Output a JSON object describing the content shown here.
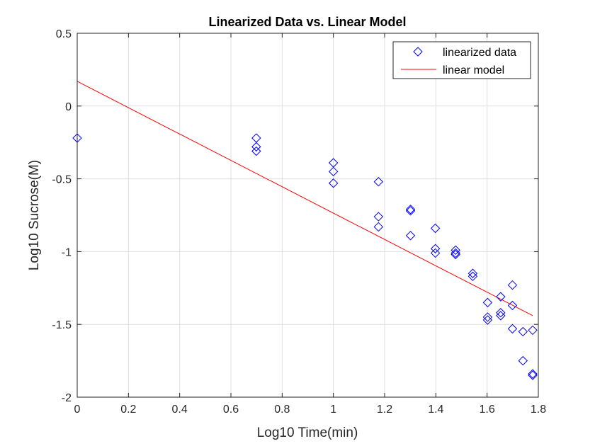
{
  "chart_data": {
    "type": "scatter",
    "title": "Linearized Data vs. Linear Model",
    "xlabel": "Log10 Time(min)",
    "ylabel": "Log10 Sucrose(M)",
    "xlim": [
      0,
      1.8
    ],
    "ylim": [
      -2,
      0.5
    ],
    "xticks": [
      "0",
      "0.2",
      "0.4",
      "0.6",
      "0.8",
      "1",
      "1.2",
      "1.4",
      "1.6",
      "1.8"
    ],
    "yticks": [
      "0.5",
      "0",
      "-0.5",
      "-1",
      "-1.5",
      "-2"
    ],
    "grid": true,
    "legend_position": "top-right",
    "series": [
      {
        "name": "linearized data",
        "kind": "markers",
        "marker": "diamond",
        "color": "#0000ff",
        "points": [
          [
            0.0,
            -0.22
          ],
          [
            0.699,
            -0.22
          ],
          [
            0.699,
            -0.28
          ],
          [
            0.699,
            -0.31
          ],
          [
            1.0,
            -0.39
          ],
          [
            1.0,
            -0.45
          ],
          [
            1.0,
            -0.53
          ],
          [
            1.176,
            -0.52
          ],
          [
            1.176,
            -0.76
          ],
          [
            1.176,
            -0.83
          ],
          [
            1.301,
            -0.71
          ],
          [
            1.301,
            -0.72
          ],
          [
            1.301,
            -0.89
          ],
          [
            1.398,
            -0.84
          ],
          [
            1.398,
            -0.98
          ],
          [
            1.398,
            -1.01
          ],
          [
            1.477,
            -0.99
          ],
          [
            1.477,
            -1.01
          ],
          [
            1.477,
            -1.02
          ],
          [
            1.544,
            -1.15
          ],
          [
            1.544,
            -1.17
          ],
          [
            1.602,
            -1.35
          ],
          [
            1.602,
            -1.45
          ],
          [
            1.602,
            -1.47
          ],
          [
            1.653,
            -1.31
          ],
          [
            1.653,
            -1.42
          ],
          [
            1.653,
            -1.44
          ],
          [
            1.699,
            -1.23
          ],
          [
            1.699,
            -1.37
          ],
          [
            1.699,
            -1.53
          ],
          [
            1.74,
            -1.55
          ],
          [
            1.74,
            -1.75
          ],
          [
            1.778,
            -1.54
          ],
          [
            1.778,
            -1.84
          ],
          [
            1.778,
            -1.85
          ]
        ]
      },
      {
        "name": "linear model",
        "kind": "line",
        "color": "#ff0000",
        "points": [
          [
            0.0,
            0.17
          ],
          [
            1.778,
            -1.44
          ]
        ]
      }
    ]
  }
}
